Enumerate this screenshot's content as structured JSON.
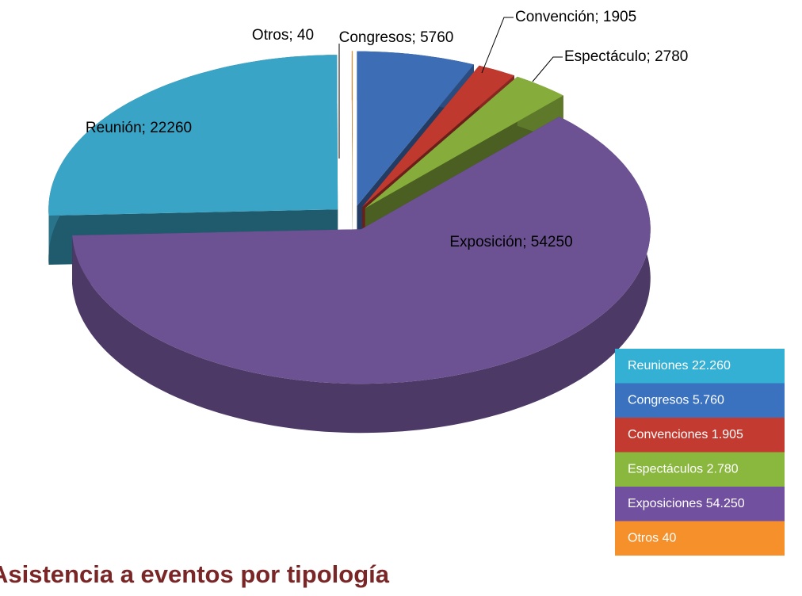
{
  "chart_data": {
    "type": "pie",
    "title": "Asistencia a eventos por tipología",
    "categories": [
      "Congresos",
      "Convención",
      "Espectáculo",
      "Exposición",
      "Reunión",
      "Otros"
    ],
    "values": [
      5760,
      1905,
      2780,
      54250,
      22260,
      40
    ],
    "value_labels": [
      "Congresos; 5760",
      "Convención; 1905",
      "Espectáculo; 2780",
      "Exposición; 54250",
      "Reunión; 22260",
      "Otros; 40"
    ],
    "colors": [
      "#3d6db5",
      "#c0392f",
      "#86ad3c",
      "#6c5292",
      "#3aa4c6",
      "#f28b25"
    ],
    "legend": [
      {
        "label": "Reuniones 22.260",
        "color": "#33b0d4"
      },
      {
        "label": "Congresos 5.760",
        "color": "#3a72c0"
      },
      {
        "label": "Convenciones 1.905",
        "color": "#c33a30"
      },
      {
        "label": "Espectáculos 2.780",
        "color": "#8ab83e"
      },
      {
        "label": "Exposiciones 54.250",
        "color": "#7150a0"
      },
      {
        "label": "Otros 40",
        "color": "#f6902b"
      }
    ]
  }
}
